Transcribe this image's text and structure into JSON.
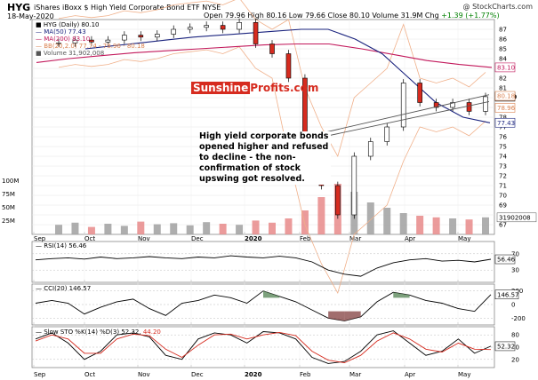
{
  "header": {
    "symbol": "HYG",
    "name": "iShares iBoxx $ High Yield Corporate Bond ETF  NYSE",
    "date": "18-May-2020",
    "copyright": "@ StockCharts.com",
    "open_label": "Open",
    "open": "79.96",
    "high_label": "High",
    "high": "80.16",
    "low_label": "Low",
    "low": "79.66",
    "close_label": "Close",
    "close": "80.10",
    "volume_label": "Volume",
    "volume": "31.9M",
    "chg_label": "Chg",
    "chg": "+1.39 (+1.77%)"
  },
  "legend": {
    "price": "HYG (Daily) 80.10",
    "ma50": "MA(50) 77.43",
    "ma200": "MA(200) 83.10",
    "bb": "BB(20,2.0) 77.74 - 78.96 - 80.18",
    "volume": "Volume 31,902,008",
    "rsi": "RSI(14) 56.46",
    "cci": "CCI(20) 146.57",
    "sto": "Slow STO %K(14) %D(3) 52.32,",
    "sto_d": "44.20"
  },
  "annotation": {
    "text": "High yield corporate bonds opened higher and refused to decline - the non-confirmation of stock upswing got resolved.",
    "logo_a": "Sunshine",
    "logo_b": "Profits.com"
  },
  "colors": {
    "up": "#ffffff",
    "down": "#d62b1f",
    "ma50": "#1a237e",
    "ma200": "#c2185b",
    "bb": "#f0b08a",
    "vol_up": "#a0a0a0",
    "vol_down": "#e88a8a",
    "osc_pos": "#5d8a5d",
    "osc_neg": "#8a4a4a"
  },
  "chart_data": [
    {
      "type": "candlestick",
      "title": "HYG (Daily)",
      "x_labels": [
        "Sep",
        "Oct",
        "Nov",
        "Dec",
        "2020",
        "Feb",
        "Mar",
        "Apr",
        "May"
      ],
      "ylim": [
        66,
        88
      ],
      "y_ticks": [
        67,
        68,
        69,
        70,
        71,
        72,
        73,
        74,
        75,
        76,
        77,
        78,
        79,
        80,
        81,
        82,
        83,
        84,
        85,
        86,
        87
      ],
      "y_tick_labels": [
        "67",
        "68",
        "69",
        "70",
        "71",
        "72",
        "73",
        "74",
        "75",
        "76",
        "77",
        "78",
        "79",
        "80",
        "81",
        "82",
        "83",
        "84",
        "85",
        "86",
        "87"
      ],
      "close_series": [
        {
          "date": "Sep",
          "close": 85.6
        },
        {
          "date": "mid-Sep",
          "close": 85.9
        },
        {
          "date": "Oct",
          "close": 85.7
        },
        {
          "date": "mid-Oct",
          "close": 85.9
        },
        {
          "date": "Nov",
          "close": 86.4
        },
        {
          "date": "mid-Nov",
          "close": 86.2
        },
        {
          "date": "Dec",
          "close": 86.5
        },
        {
          "date": "mid-Dec",
          "close": 87.0
        },
        {
          "date": "2020",
          "close": 87.2
        },
        {
          "date": "mid-Jan",
          "close": 87.4
        },
        {
          "date": "Feb",
          "close": 87.0
        },
        {
          "date": "mid-Feb",
          "close": 87.7
        },
        {
          "date": "late-Feb",
          "close": 85.5
        },
        {
          "date": "Mar",
          "close": 84.5
        },
        {
          "date": "early-Mar",
          "close": 82.0
        },
        {
          "date": "mid-Mar",
          "close": 75.0
        },
        {
          "date": "mid-Mar",
          "close": 71.0
        },
        {
          "date": "late-Mar",
          "close": 68.0
        },
        {
          "date": "late-Mar",
          "close": 74.0
        },
        {
          "date": "Apr",
          "close": 75.5
        },
        {
          "date": "early-Apr",
          "close": 77.0
        },
        {
          "date": "mid-Apr",
          "close": 81.5
        },
        {
          "date": "mid-Apr",
          "close": 79.5
        },
        {
          "date": "late-Apr",
          "close": 79.0
        },
        {
          "date": "May",
          "close": 79.5
        },
        {
          "date": "mid-May",
          "close": 78.6
        },
        {
          "date": "18-May",
          "close": 80.1
        }
      ],
      "ma50_series": [
        85.0,
        85.3,
        85.6,
        85.9,
        86.2,
        86.4,
        86.6,
        86.8,
        87.0,
        87.0,
        86.0,
        84.5,
        82.0,
        79.5,
        78.0,
        77.43
      ],
      "ma200_series": [
        83.6,
        84.0,
        84.3,
        84.6,
        84.8,
        85.0,
        85.2,
        85.4,
        85.5,
        85.5,
        85.0,
        84.4,
        83.8,
        83.4,
        83.1
      ],
      "price_labels": {
        "ma200": "83.10",
        "close": "80.10",
        "bb_upper": "80.18",
        "bb_mid": "78.96",
        "ma50": "77.43"
      },
      "volume": {
        "label": "Volume",
        "last": "31902008",
        "axis_ticks": [
          "100M",
          "75M",
          "50M",
          "25M"
        ],
        "scale_max": 100000000,
        "sample_values": [
          18,
          22,
          14,
          20,
          16,
          24,
          19,
          21,
          17,
          23,
          20,
          18,
          26,
          22,
          30,
          45,
          70,
          95,
          80,
          60,
          50,
          40,
          35,
          32,
          30,
          28,
          32
        ]
      }
    },
    {
      "type": "line",
      "title": "RSI(14)",
      "value": 56.46,
      "ylim": [
        0,
        100
      ],
      "y_ticks": [
        70,
        30
      ],
      "reference_lines": [
        70,
        30
      ],
      "series": [
        55,
        58,
        60,
        57,
        62,
        58,
        60,
        63,
        60,
        58,
        62,
        60,
        65,
        62,
        60,
        64,
        60,
        50,
        30,
        20,
        15,
        35,
        48,
        55,
        58,
        52,
        54,
        50,
        56.46
      ]
    },
    {
      "type": "area",
      "title": "CCI(20)",
      "value": 146.57,
      "ylim": [
        -300,
        300
      ],
      "y_ticks": [
        200,
        0,
        -200
      ],
      "series": [
        20,
        60,
        20,
        -140,
        -40,
        40,
        80,
        -60,
        -160,
        20,
        60,
        140,
        100,
        20,
        200,
        120,
        40,
        -80,
        -200,
        -240,
        -180,
        40,
        180,
        140,
        60,
        20,
        -60,
        -100,
        146.57
      ]
    },
    {
      "type": "line",
      "title": "Slow STO %K(14) %D(3)",
      "k": 52.32,
      "d": 44.2,
      "ylim": [
        0,
        100
      ],
      "y_ticks": [
        80,
        50,
        20
      ],
      "reference_lines": [
        80,
        20
      ],
      "k_series": [
        70,
        85,
        60,
        20,
        40,
        80,
        85,
        75,
        30,
        20,
        70,
        85,
        80,
        60,
        88,
        85,
        70,
        25,
        10,
        15,
        40,
        80,
        90,
        60,
        30,
        40,
        70,
        35,
        52.32
      ],
      "d_series": [
        65,
        80,
        70,
        35,
        35,
        70,
        82,
        78,
        45,
        25,
        55,
        80,
        82,
        70,
        80,
        86,
        78,
        40,
        18,
        12,
        30,
        65,
        85,
        70,
        45,
        38,
        60,
        45,
        44.2
      ]
    }
  ]
}
